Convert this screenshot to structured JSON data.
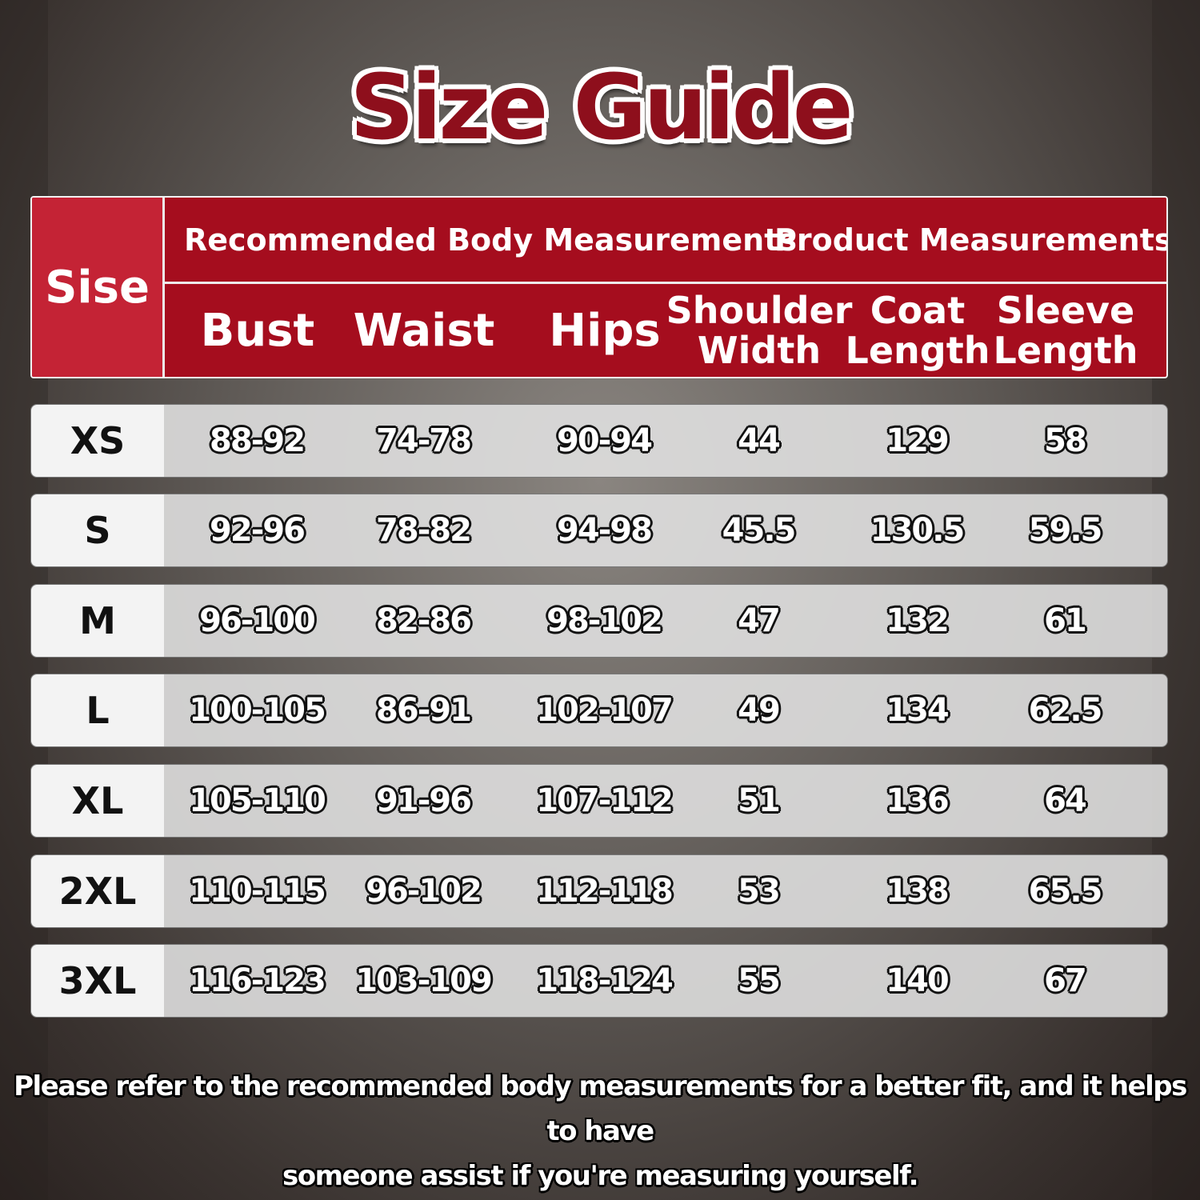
{
  "title": "Size Guide",
  "header": {
    "size_label": "Sise",
    "group_body": "Recommended Body Measurements",
    "group_product": "Product Measurements",
    "columns": [
      "Bust",
      "Waist",
      "Hips",
      "Shoulder Width",
      "Coat Length",
      "Sleeve Length"
    ]
  },
  "rows": [
    {
      "size": "XS",
      "values": [
        "88-92",
        "74-78",
        "90-94",
        "44",
        "129",
        "58"
      ]
    },
    {
      "size": "S",
      "values": [
        "92-96",
        "78-82",
        "94-98",
        "45.5",
        "130.5",
        "59.5"
      ]
    },
    {
      "size": "M",
      "values": [
        "96-100",
        "82-86",
        "98-102",
        "47",
        "132",
        "61"
      ]
    },
    {
      "size": "L",
      "values": [
        "100-105",
        "86-91",
        "102-107",
        "49",
        "134",
        "62.5"
      ]
    },
    {
      "size": "XL",
      "values": [
        "105-110",
        "91-96",
        "107-112",
        "51",
        "136",
        "64"
      ]
    },
    {
      "size": "2XL",
      "values": [
        "110-115",
        "96-102",
        "112-118",
        "53",
        "138",
        "65.5"
      ]
    },
    {
      "size": "3XL",
      "values": [
        "116-123",
        "103-109",
        "118-124",
        "55",
        "140",
        "67"
      ]
    }
  ],
  "footer": {
    "line1": "Please refer to the recommended body measurements for a better fit, and it helps to have",
    "line2": "someone assist if you're measuring yourself."
  },
  "colors": {
    "title": "#8e0f1c",
    "header_bg": "#a50d1e",
    "size_header_bg": "#c42335"
  }
}
